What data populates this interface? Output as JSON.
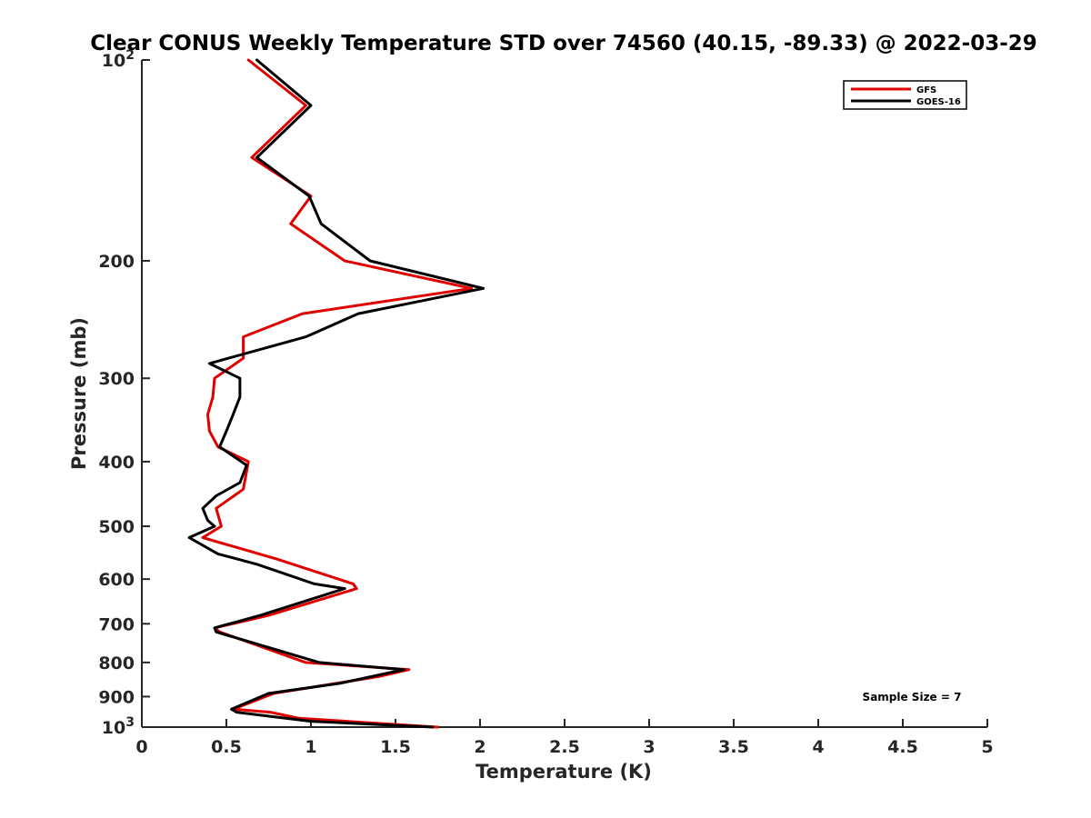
{
  "chart_data": {
    "type": "line",
    "title": "Clear CONUS Weekly Temperature STD over 74560 (40.15, -89.33) @ 2022-03-29",
    "xlabel": "Temperature (K)",
    "ylabel": "Pressure (mb)",
    "xlim": [
      0,
      5
    ],
    "ylim": [
      100,
      1000
    ],
    "y_scale": "log",
    "y_reversed": true,
    "grid": false,
    "legend_position": "top-right",
    "x_ticks": [
      {
        "value": 0,
        "label": "0"
      },
      {
        "value": 0.5,
        "label": "0.5"
      },
      {
        "value": 1,
        "label": "1"
      },
      {
        "value": 1.5,
        "label": "1.5"
      },
      {
        "value": 2,
        "label": "2"
      },
      {
        "value": 2.5,
        "label": "2.5"
      },
      {
        "value": 3,
        "label": "3"
      },
      {
        "value": 3.5,
        "label": "3.5"
      },
      {
        "value": 4,
        "label": "4"
      },
      {
        "value": 4.5,
        "label": "4.5"
      },
      {
        "value": 5,
        "label": "5"
      }
    ],
    "y_ticks": [
      {
        "value": 100,
        "base": "10",
        "exp": "2"
      },
      {
        "value": 200,
        "label": "200"
      },
      {
        "value": 300,
        "label": "300"
      },
      {
        "value": 400,
        "label": "400"
      },
      {
        "value": 500,
        "label": "500"
      },
      {
        "value": 600,
        "label": "600"
      },
      {
        "value": 700,
        "label": "700"
      },
      {
        "value": 800,
        "label": "800"
      },
      {
        "value": 900,
        "label": "900"
      },
      {
        "value": 1000,
        "base": "10",
        "exp": "3"
      }
    ],
    "series": [
      {
        "name": "GFS",
        "color": "#e00000",
        "points": [
          [
            0.63,
            100
          ],
          [
            0.97,
            117
          ],
          [
            0.65,
            140
          ],
          [
            1.0,
            160
          ],
          [
            0.88,
            176
          ],
          [
            1.2,
            200
          ],
          [
            1.95,
            220
          ],
          [
            0.95,
            240
          ],
          [
            0.6,
            260
          ],
          [
            0.6,
            280
          ],
          [
            0.43,
            300
          ],
          [
            0.42,
            320
          ],
          [
            0.39,
            340
          ],
          [
            0.4,
            360
          ],
          [
            0.45,
            380
          ],
          [
            0.63,
            400
          ],
          [
            0.6,
            440
          ],
          [
            0.44,
            470
          ],
          [
            0.47,
            500
          ],
          [
            0.36,
            520
          ],
          [
            0.8,
            560
          ],
          [
            1.25,
            610
          ],
          [
            1.27,
            620
          ],
          [
            0.75,
            680
          ],
          [
            0.43,
            710
          ],
          [
            0.46,
            720
          ],
          [
            0.97,
            800
          ],
          [
            1.58,
            820
          ],
          [
            1.4,
            840
          ],
          [
            0.78,
            890
          ],
          [
            0.54,
            940
          ],
          [
            0.76,
            950
          ],
          [
            0.93,
            970
          ],
          [
            1.75,
            1000
          ]
        ]
      },
      {
        "name": "GOES-16",
        "color": "#000000",
        "points": [
          [
            0.68,
            100
          ],
          [
            1.0,
            117
          ],
          [
            0.68,
            140
          ],
          [
            0.99,
            160
          ],
          [
            1.06,
            176
          ],
          [
            1.35,
            200
          ],
          [
            2.02,
            220
          ],
          [
            1.28,
            240
          ],
          [
            0.97,
            260
          ],
          [
            0.4,
            285
          ],
          [
            0.58,
            300
          ],
          [
            0.58,
            320
          ],
          [
            0.54,
            340
          ],
          [
            0.5,
            360
          ],
          [
            0.46,
            380
          ],
          [
            0.62,
            405
          ],
          [
            0.58,
            430
          ],
          [
            0.44,
            450
          ],
          [
            0.36,
            470
          ],
          [
            0.39,
            490
          ],
          [
            0.43,
            500
          ],
          [
            0.28,
            520
          ],
          [
            0.45,
            550
          ],
          [
            0.68,
            570
          ],
          [
            1.02,
            610
          ],
          [
            1.2,
            620
          ],
          [
            0.7,
            680
          ],
          [
            0.43,
            710
          ],
          [
            0.44,
            720
          ],
          [
            1.05,
            800
          ],
          [
            1.55,
            820
          ],
          [
            1.17,
            860
          ],
          [
            0.75,
            890
          ],
          [
            0.53,
            940
          ],
          [
            0.56,
            950
          ],
          [
            1.0,
            980
          ],
          [
            1.72,
            1000
          ]
        ]
      }
    ],
    "annotations": [
      "Sample Size = 7"
    ]
  }
}
